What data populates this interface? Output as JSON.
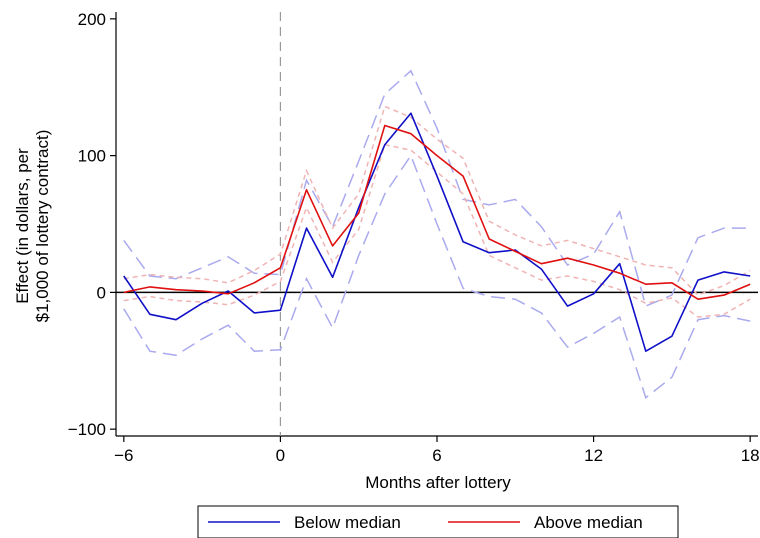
{
  "chart_data": {
    "type": "line",
    "xlabel": "Months after lottery",
    "ylabel_lines": [
      "Effect (in dollars, per",
      "$1,000 of lottery contract)"
    ],
    "xlim": [
      -6.3,
      18.3
    ],
    "ylim": [
      -105,
      205
    ],
    "xticks": [
      -6,
      0,
      6,
      12,
      18
    ],
    "xtick_labels": [
      "−6",
      "0",
      "6",
      "12",
      "18"
    ],
    "yticks": [
      -100,
      0,
      100,
      200
    ],
    "ytick_labels": [
      "−100",
      "0",
      "100",
      "200"
    ],
    "x": [
      -6,
      -5,
      -4,
      -3,
      -2,
      -1,
      0,
      1,
      2,
      3,
      4,
      5,
      6,
      7,
      8,
      9,
      10,
      11,
      12,
      13,
      14,
      15,
      16,
      17,
      18
    ],
    "reference_lines": {
      "vertical_x": 0,
      "horizontal_y": 0
    },
    "legend_position": "bottom",
    "series": [
      {
        "name": "Below median",
        "color": "#1010c8",
        "values": [
          12,
          -16,
          -20,
          -8,
          1,
          -15,
          -13,
          47,
          11,
          62,
          108,
          131,
          85,
          37,
          29,
          31,
          17,
          -10,
          -1,
          21,
          -43,
          -32,
          9,
          15,
          12
        ],
        "ci_upper": [
          38,
          12,
          10,
          18,
          26,
          14,
          13,
          82,
          48,
          96,
          145,
          162,
          120,
          68,
          64,
          68,
          48,
          20,
          28,
          59,
          -10,
          -2,
          40,
          47,
          47
        ],
        "ci_lower": [
          -12,
          -43,
          -46,
          -34,
          -24,
          -43,
          -42,
          10,
          -26,
          27,
          72,
          100,
          50,
          3,
          -3,
          -5,
          -15,
          -40,
          -30,
          -18,
          -77,
          -62,
          -20,
          -17,
          -21
        ],
        "ci_color": "#aaaaee"
      },
      {
        "name": "Above median",
        "color": "#e01010",
        "values": [
          0,
          4,
          2,
          1,
          -1,
          7,
          18,
          75,
          34,
          58,
          122,
          116,
          100,
          85,
          39,
          30,
          21,
          25,
          20,
          14,
          6,
          7,
          -5,
          -2,
          6
        ],
        "ci_upper": [
          10,
          13,
          11,
          10,
          7,
          16,
          28,
          89,
          47,
          72,
          136,
          128,
          112,
          98,
          52,
          42,
          34,
          38,
          32,
          26,
          20,
          18,
          -2,
          5,
          16
        ],
        "ci_lower": [
          -6,
          -3,
          -6,
          -7,
          -9,
          -2,
          8,
          62,
          22,
          46,
          108,
          104,
          88,
          72,
          27,
          18,
          9,
          12,
          8,
          2,
          -8,
          -4,
          -18,
          -16,
          -5
        ],
        "ci_color": "#f0b4b4"
      }
    ]
  }
}
